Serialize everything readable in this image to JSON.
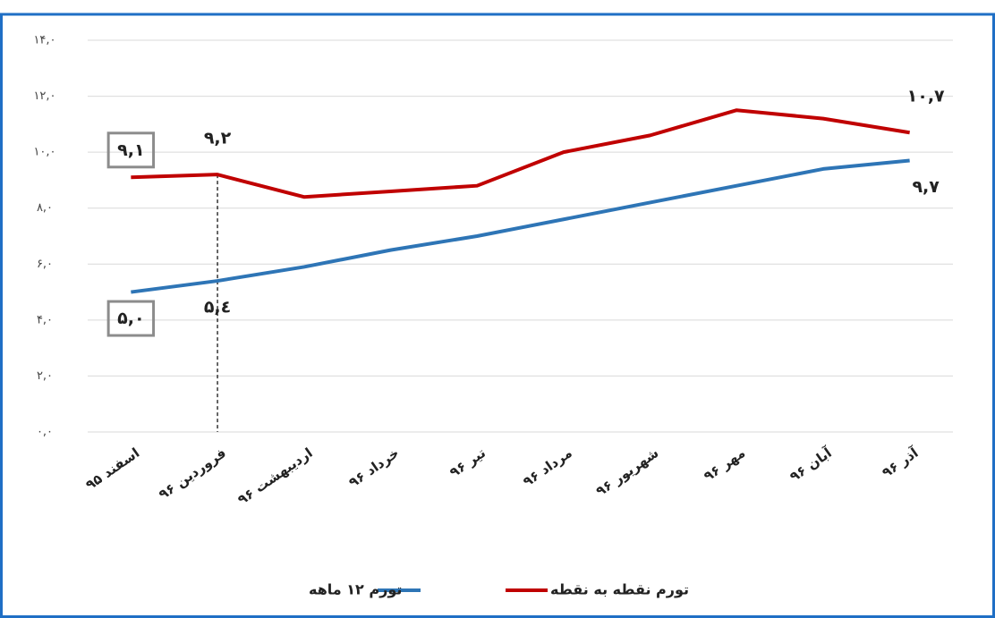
{
  "chart_data": {
    "type": "line",
    "categories": [
      "اسفند ۹۵",
      "فروردین ۹۶",
      "اردیبهشت ۹۶",
      "خرداد ۹۶",
      "تیر ۹۶",
      "مرداد ۹۶",
      "شهریور ۹۶",
      "مهر ۹۶",
      "آبان ۹۶",
      "آذر ۹۶"
    ],
    "series": [
      {
        "name": "تورم نقطه به نقطه",
        "color": "#c00000",
        "values": [
          9.1,
          9.2,
          8.4,
          8.6,
          8.8,
          10.0,
          10.6,
          11.5,
          11.2,
          10.7
        ],
        "value_labels": [
          "۹,۱",
          "۹,۲",
          null,
          null,
          null,
          null,
          null,
          null,
          null,
          "۱۰,۷"
        ]
      },
      {
        "name": "تورم ۱۲ ماهه",
        "color": "#2e75b6",
        "values": [
          5.0,
          5.4,
          5.9,
          6.5,
          7.0,
          7.6,
          8.2,
          8.8,
          9.4,
          9.7
        ],
        "value_labels": [
          "۵,۰",
          "۵,٤",
          null,
          null,
          null,
          null,
          null,
          null,
          null,
          "۹,۷"
        ]
      }
    ],
    "ylim": [
      0,
      14
    ],
    "yticks": [
      {
        "value": 0,
        "label": "۰,۰"
      },
      {
        "value": 2,
        "label": "۲,۰"
      },
      {
        "value": 4,
        "label": "۴,۰"
      },
      {
        "value": 6,
        "label": "۶,۰"
      },
      {
        "value": 8,
        "label": "۸,۰"
      },
      {
        "value": 10,
        "label": "۱۰,۰"
      },
      {
        "value": 12,
        "label": "۱۲,۰"
      },
      {
        "value": 14,
        "label": "۱۴,۰"
      }
    ],
    "grid": true
  }
}
